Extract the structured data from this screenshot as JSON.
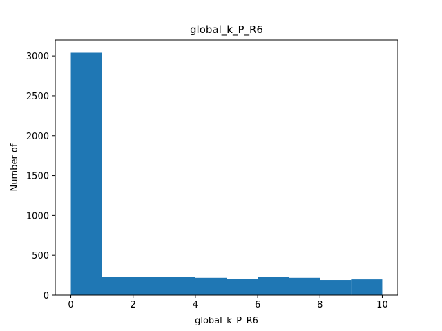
{
  "chart_data": {
    "type": "bar",
    "title": "global_k_P_R6",
    "xlabel": "global_k_P_R6",
    "ylabel": "Number of",
    "bin_edges": [
      0,
      1,
      2,
      3,
      4,
      5,
      6,
      7,
      8,
      9,
      10
    ],
    "values": [
      3040,
      232,
      225,
      232,
      218,
      200,
      232,
      218,
      190,
      198
    ],
    "xlim": [
      -0.5,
      10.5
    ],
    "ylim": [
      0,
      3200
    ],
    "xticks": [
      0,
      2,
      4,
      6,
      8,
      10
    ],
    "yticks": [
      0,
      500,
      1000,
      1500,
      2000,
      2500,
      3000
    ],
    "bar_color": "#1f77b4",
    "grid": false
  }
}
